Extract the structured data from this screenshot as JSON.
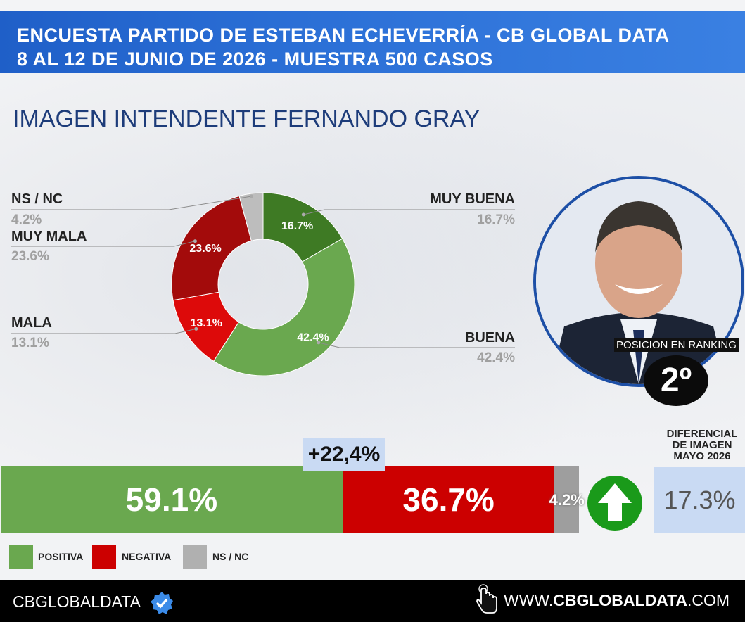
{
  "header": {
    "line1": "ENCUESTA PARTIDO DE ESTEBAN ECHEVERRÍA - CB GLOBAL DATA",
    "line2": "8 AL 12 DE JUNIO DE 2026 - MUESTRA 500 CASOS"
  },
  "chart_data": [
    {
      "type": "pie",
      "title": "IMAGEN INTENDENTE  FERNANDO GRAY",
      "categories": [
        "MUY BUENA",
        "BUENA",
        "MALA",
        "MUY MALA",
        "NS / NC"
      ],
      "values": [
        16.7,
        42.4,
        13.1,
        23.6,
        4.2
      ],
      "value_labels": [
        "16.7%",
        "42.4%",
        "13.1%",
        "23.6%",
        "4.2%"
      ],
      "colors": [
        "#3e7a24",
        "#6aa84f",
        "#dd0a0a",
        "#a30b0b",
        "#bdbdbd"
      ]
    },
    {
      "type": "bar",
      "categories": [
        "POSITIVA",
        "NEGATIVA",
        "NS / NC"
      ],
      "values": [
        59.1,
        36.7,
        4.2
      ],
      "value_labels": [
        "59.1%",
        "36.7%",
        "4.2%"
      ],
      "colors": [
        "#6aa84f",
        "#cc0000",
        "#9e9e9e"
      ],
      "stacked": true,
      "annotation": "+22,4%"
    }
  ],
  "ranking": {
    "label": "POSICION EN RANKING",
    "value": "2º"
  },
  "diferencial": {
    "title_lines": [
      "DIFERENCIAL",
      "DE IMAGEN",
      "MAYO 2026"
    ],
    "value": "17.3%",
    "trend_icon": "arrow-up-icon",
    "trend_color": "#1a9a1a"
  },
  "legend": {
    "items": [
      {
        "label": "POSITIVA",
        "color": "#6aa84f"
      },
      {
        "label": "NEGATIVA",
        "color": "#cc0000"
      },
      {
        "label": "NS / NC",
        "color": "#b0b0b0"
      }
    ]
  },
  "footer": {
    "brand": "CBGLOBALDATA",
    "verified_icon": "verified-badge-icon",
    "pointer_icon": "hand-pointer-icon",
    "url_prefix": "WWW.",
    "url_main": "CBGLOBALDATA",
    "url_suffix": ".COM"
  }
}
